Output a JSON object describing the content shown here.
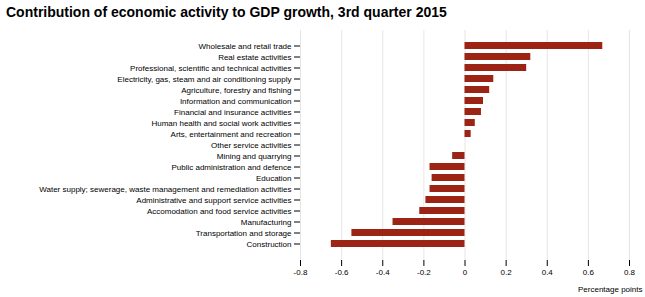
{
  "chart_data": {
    "type": "bar",
    "orientation": "horizontal",
    "title": "Contribution of economic activity to GDP growth, 3rd quarter 2015",
    "xlabel": "Percentage points",
    "categories": [
      "Construction",
      "Transportation and storage",
      "Manufacturing",
      "Accomodation and food service activities",
      "Administrative and support service activities",
      "Water supply; sewerage, waste management and remediation activities",
      "Education",
      "Public administration and defence",
      "Mining and quarrying",
      "Other service activities",
      "Arts, entertainment and recreation",
      "Human health and social work activities",
      "Financial and insurance activities",
      "Information and communication",
      "Agriculture, forestry and fishing",
      "Electricity, gas, steam and air conditioning supply",
      "Professional, scientific and technical activities",
      "Real estate activities",
      "Wholesale and retail trade"
    ],
    "values": [
      -0.65,
      -0.55,
      -0.35,
      -0.22,
      -0.19,
      -0.17,
      -0.16,
      -0.17,
      -0.06,
      0.0,
      0.03,
      0.05,
      0.08,
      0.09,
      0.12,
      0.14,
      0.3,
      0.32,
      0.67
    ],
    "color": "#9B2415",
    "xlim": [
      -0.8,
      0.8
    ],
    "xticks": [
      -0.8,
      -0.6,
      -0.4,
      -0.2,
      0,
      0.2,
      0.4,
      0.6,
      0.8
    ],
    "grid": true
  }
}
